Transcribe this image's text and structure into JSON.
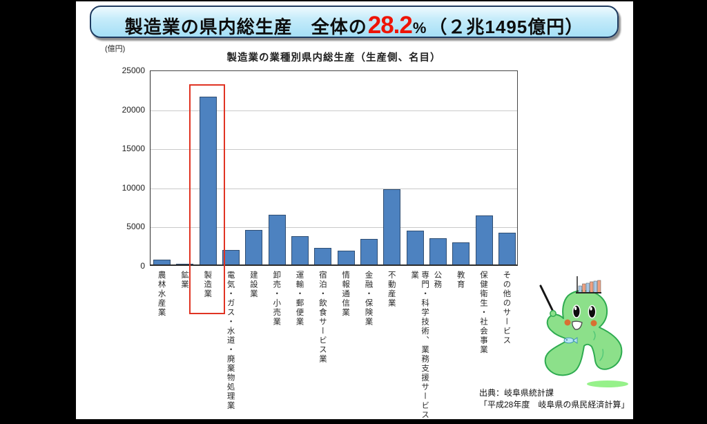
{
  "banner": {
    "title_prefix": "製造業の県内総生産　全体の",
    "percent": "28.2",
    "percent_sign": "%",
    "amount": "（２兆1495億円）",
    "accent_color": "#ee1405"
  },
  "chart_data": {
    "type": "bar",
    "title": "製造業の業種別県内総生産（生産側、名目）",
    "unit_label": "(億円)",
    "xlabel": "",
    "ylabel": "億円",
    "ylim": [
      0,
      25000
    ],
    "yticks": [
      0,
      5000,
      10000,
      15000,
      20000,
      25000
    ],
    "grid": true,
    "legend": false,
    "bar_color": "#4d82c0",
    "highlight_index": 2,
    "highlight_box_color": "#e03322",
    "categories": [
      "農林水産業",
      "鉱業",
      "製造業",
      "電気・ガス・水道・廃棄物処理業",
      "建設業",
      "卸売・小売業",
      "運輸・郵便業",
      "宿泊・飲食サービス業",
      "情報通信業",
      "金融・保険業",
      "不動産業",
      "専門・科学技術、業務支援サービス業",
      "公務",
      "教育",
      "保健衛生・社会事業",
      "その他のサービス"
    ],
    "values": [
      650,
      50,
      21495,
      1850,
      4400,
      6400,
      3600,
      2150,
      1800,
      3300,
      9600,
      4300,
      3400,
      2800,
      6300,
      4100
    ]
  },
  "source": {
    "line1": "出典：岐阜県統計課",
    "line2": "「平成28年度　岐阜県の県民経済計算」"
  },
  "icons": {
    "mascot": "green-amoeba-statistics-mascot",
    "mascot_head": "bar-chart-icon",
    "mascot_hand": "pointer-stick-icon",
    "mascot_belly": "fish-icon"
  }
}
